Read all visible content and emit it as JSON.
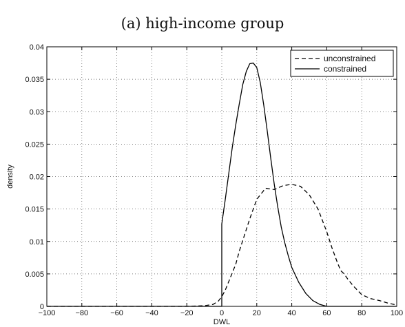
{
  "chart_data": {
    "type": "line",
    "title": "(a) high-income group",
    "xlabel": "DWL",
    "ylabel": "density",
    "xlim": [
      -100,
      100
    ],
    "ylim": [
      0,
      0.04
    ],
    "xticks": [
      -100,
      -80,
      -60,
      -40,
      -20,
      0,
      20,
      40,
      60,
      80,
      100
    ],
    "yticks": [
      0,
      0.005,
      0.01,
      0.015,
      0.02,
      0.025,
      0.03,
      0.035,
      0.04
    ],
    "xtick_labels": [
      "−100",
      "−80",
      "−60",
      "−40",
      "−20",
      "0",
      "20",
      "40",
      "60",
      "80",
      "100"
    ],
    "ytick_labels": [
      "0",
      "0.005",
      "0.01",
      "0.015",
      "0.02",
      "0.025",
      "0.03",
      "0.035",
      "0.04"
    ],
    "grid": true,
    "legend_position": "top-right",
    "series": [
      {
        "name": "unconstrained",
        "style": "dashed",
        "x": [
          -100,
          -20,
          -10,
          -5,
          -2,
          0,
          2,
          5,
          8,
          10,
          13,
          16,
          20,
          25,
          30,
          35,
          40,
          45,
          50,
          55,
          60,
          63,
          66,
          68,
          70,
          72,
          75,
          80,
          85,
          90,
          95,
          100
        ],
        "y": [
          0,
          0,
          0.0001,
          0.0003,
          0.0008,
          0.0015,
          0.0025,
          0.0045,
          0.0065,
          0.0085,
          0.011,
          0.0135,
          0.0165,
          0.0182,
          0.018,
          0.0186,
          0.0188,
          0.0185,
          0.0172,
          0.015,
          0.0115,
          0.009,
          0.0068,
          0.0055,
          0.005,
          0.0042,
          0.0032,
          0.0018,
          0.0012,
          0.0009,
          0.0005,
          0.0002
        ]
      },
      {
        "name": "constrained",
        "style": "solid",
        "x": [
          -100,
          0,
          0,
          2,
          4,
          6,
          8,
          10,
          12,
          14,
          16,
          18,
          20,
          22,
          24,
          26,
          28,
          30,
          32,
          34,
          36,
          38,
          40,
          44,
          48,
          52,
          56,
          60,
          100
        ],
        "y": [
          0,
          0,
          0.0127,
          0.0165,
          0.0205,
          0.0245,
          0.028,
          0.0312,
          0.0342,
          0.0362,
          0.0374,
          0.0375,
          0.0368,
          0.0345,
          0.031,
          0.027,
          0.0228,
          0.0188,
          0.0153,
          0.0122,
          0.0098,
          0.0078,
          0.006,
          0.0037,
          0.002,
          0.0009,
          0.0003,
          0,
          0
        ]
      }
    ]
  }
}
